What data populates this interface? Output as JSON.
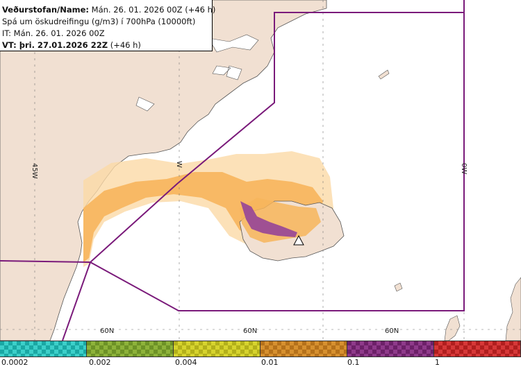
{
  "info": {
    "line1_bold": "Veðurstofan/Name:",
    "line1_rest": " Mán. 26. 01. 2026 00Z (+46 h)",
    "line2": "Spá um öskudreifingu (g/m3) í 700hPa (10000ft)",
    "line3": "IT: Mán. 26. 01. 2026 00Z",
    "line4_bold": "VT: þri. 27.01.2026 22Z",
    "line4_rest": " (+46 h)"
  },
  "grid_labels": {
    "lon_45w": "45W",
    "lon_30w": "W",
    "lon_0w": "0W",
    "lat_60n_a": "60N",
    "lat_60n_b": "60N",
    "lat_60n_c": "60N"
  },
  "legend": {
    "bins": [
      {
        "label": "0.0002",
        "color": "#3ccfc9",
        "color_dark": "#1aa8a4"
      },
      {
        "label": "0.002",
        "color": "#8db23a",
        "color_dark": "#6d9226"
      },
      {
        "label": "0.004",
        "color": "#d6d32e",
        "color_dark": "#b3b01a"
      },
      {
        "label": "0.01",
        "color": "#d6902f",
        "color_dark": "#b5711a"
      },
      {
        "label": "0.1",
        "color": "#8e3a8a",
        "color_dark": "#6c2068"
      },
      {
        "label": "1",
        "color": "#d63838",
        "color_dark": "#b01e1e"
      }
    ]
  },
  "colors": {
    "land": "#f1e0d2",
    "sea": "#ffffff",
    "boundary": "#7a1a7a",
    "ash_light": "#fbd9a6",
    "ash_mid": "#f7b55c",
    "ash_dark": "#8e3a8a"
  }
}
